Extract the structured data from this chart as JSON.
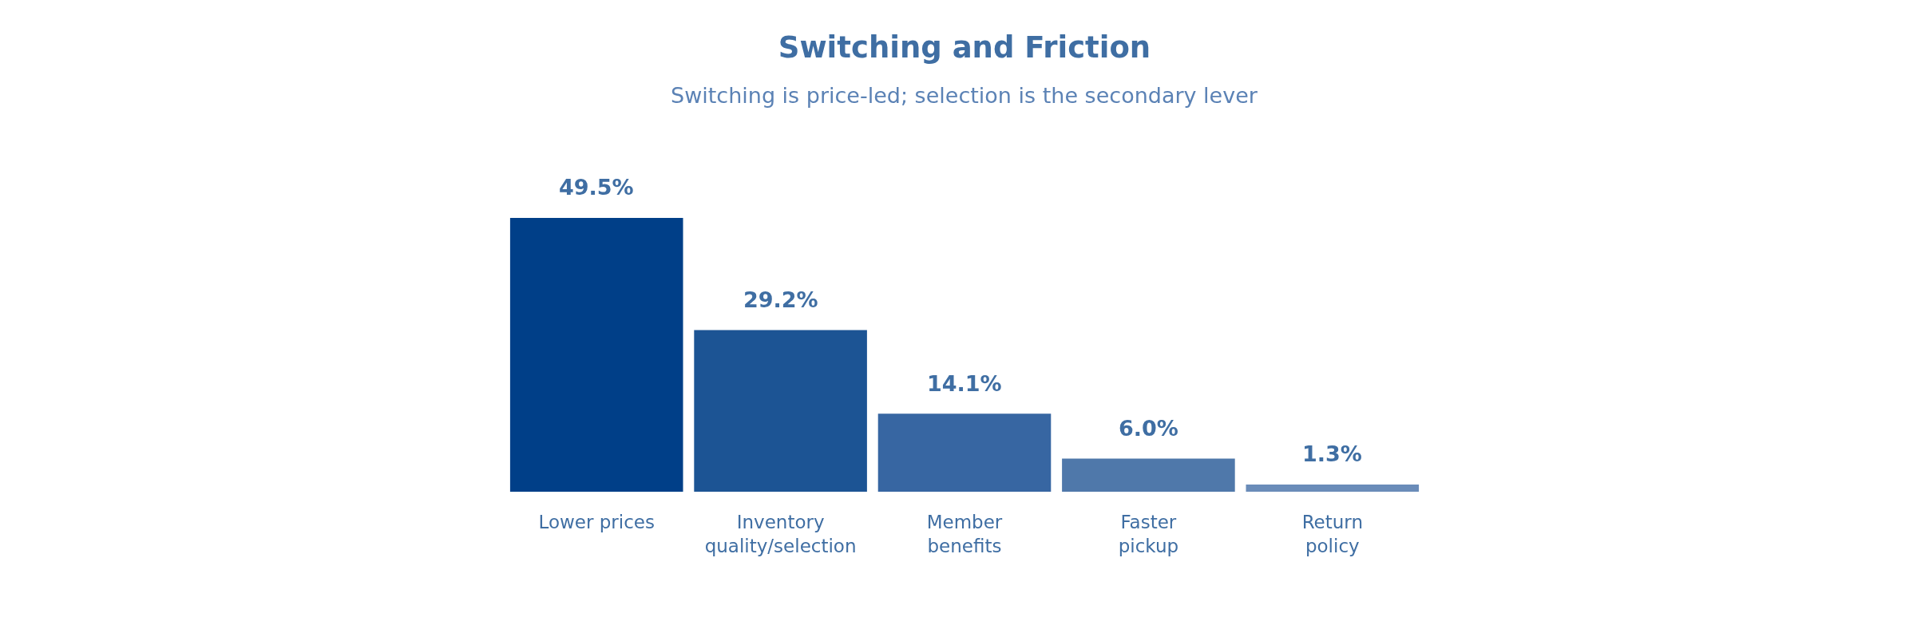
{
  "chart_data": {
    "type": "bar",
    "title": "Switching and Friction",
    "subtitle": "Switching is price-led; selection is the secondary lever",
    "categories": [
      "Lower prices",
      "Inventory quality/selection",
      "Member benefits",
      "Faster pickup",
      "Return policy"
    ],
    "values": [
      49.5,
      29.2,
      14.1,
      6.0,
      1.3
    ],
    "colors": [
      "#003f88",
      "#1c5494",
      "#3766a2",
      "#4f78aa",
      "#6a8cb9"
    ],
    "value_labels": [
      "49.5%",
      "29.2%",
      "14.1%",
      "6.0%",
      "1.3%"
    ]
  }
}
